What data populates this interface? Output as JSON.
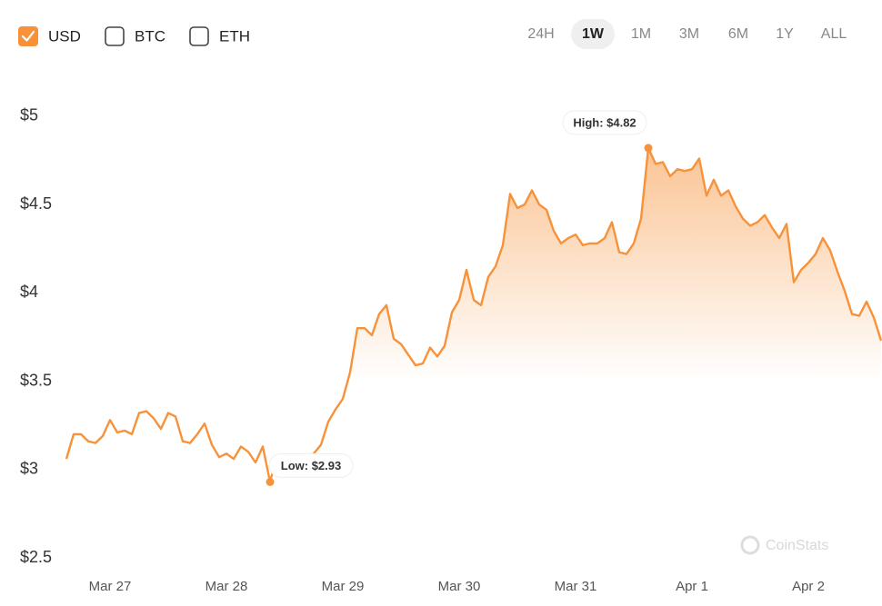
{
  "currencies": [
    {
      "label": "USD",
      "checked": true
    },
    {
      "label": "BTC",
      "checked": false
    },
    {
      "label": "ETH",
      "checked": false
    }
  ],
  "ranges": [
    "24H",
    "1W",
    "1M",
    "3M",
    "6M",
    "1Y",
    "ALL"
  ],
  "active_range": 1,
  "watermark": "CoinStats",
  "chart_data": {
    "type": "area",
    "color": "#f7923a",
    "categories": [
      null,
      null,
      null,
      null,
      null,
      null,
      "Mar 27",
      null,
      null,
      null,
      null,
      null,
      null,
      null,
      null,
      null,
      null,
      null,
      null,
      null,
      null,
      null,
      "Mar 28",
      null,
      null,
      null,
      null,
      null,
      null,
      null,
      null,
      null,
      null,
      null,
      null,
      null,
      null,
      null,
      "Mar 29",
      null,
      null,
      null,
      null,
      null,
      null,
      null,
      null,
      null,
      null,
      null,
      null,
      null,
      null,
      null,
      "Mar 30",
      null,
      null,
      null,
      null,
      null,
      null,
      null,
      null,
      null,
      null,
      null,
      null,
      null,
      null,
      null,
      "Mar 31",
      null,
      null,
      null,
      null,
      null,
      null,
      null,
      null,
      null,
      null,
      null,
      null,
      null,
      null,
      null,
      "Apr 1",
      null,
      null,
      null,
      null,
      null,
      null,
      null,
      null,
      null,
      null,
      null,
      null,
      null,
      null,
      null,
      "Apr 2",
      null,
      null,
      null,
      null,
      null,
      null,
      null,
      null,
      null,
      null
    ],
    "values": [
      3.06,
      3.2,
      3.2,
      3.16,
      3.15,
      3.19,
      3.28,
      3.21,
      3.22,
      3.2,
      3.32,
      3.33,
      3.29,
      3.23,
      3.32,
      3.3,
      3.16,
      3.15,
      3.2,
      3.26,
      3.14,
      3.07,
      3.09,
      3.06,
      3.13,
      3.1,
      3.04,
      3.13,
      2.93,
      3.08,
      3.07,
      3.08,
      3.06,
      3.07,
      3.09,
      3.14,
      3.27,
      3.34,
      3.4,
      3.55,
      3.8,
      3.8,
      3.76,
      3.88,
      3.93,
      3.74,
      3.71,
      3.65,
      3.59,
      3.6,
      3.69,
      3.64,
      3.7,
      3.89,
      3.96,
      4.13,
      3.96,
      3.93,
      4.09,
      4.15,
      4.27,
      4.56,
      4.48,
      4.5,
      4.58,
      4.5,
      4.47,
      4.35,
      4.28,
      4.31,
      4.33,
      4.27,
      4.28,
      4.28,
      4.31,
      4.4,
      4.23,
      4.22,
      4.28,
      4.42,
      4.82,
      4.73,
      4.74,
      4.66,
      4.7,
      4.69,
      4.7,
      4.76,
      4.55,
      4.64,
      4.55,
      4.58,
      4.49,
      4.42,
      4.38,
      4.4,
      4.44,
      4.37,
      4.31,
      4.39,
      4.06,
      4.13,
      4.17,
      4.22,
      4.31,
      4.24,
      4.12,
      4.01,
      3.88,
      3.87,
      3.95,
      3.86,
      3.73
    ],
    "ylim": [
      2.5,
      5.2
    ],
    "yticks": [
      {
        "value": 2.5,
        "label": "$2.5"
      },
      {
        "value": 3,
        "label": "$3"
      },
      {
        "value": 3.5,
        "label": "$3.5"
      },
      {
        "value": 4,
        "label": "$4"
      },
      {
        "value": 4.5,
        "label": "$4.5"
      },
      {
        "value": 5,
        "label": "$5"
      }
    ],
    "grid": false,
    "annotations": [
      {
        "label": "High: $4.82",
        "value": 4.82,
        "index": 80
      },
      {
        "label": "Low: $2.93",
        "value": 2.93,
        "index": 28
      }
    ]
  }
}
